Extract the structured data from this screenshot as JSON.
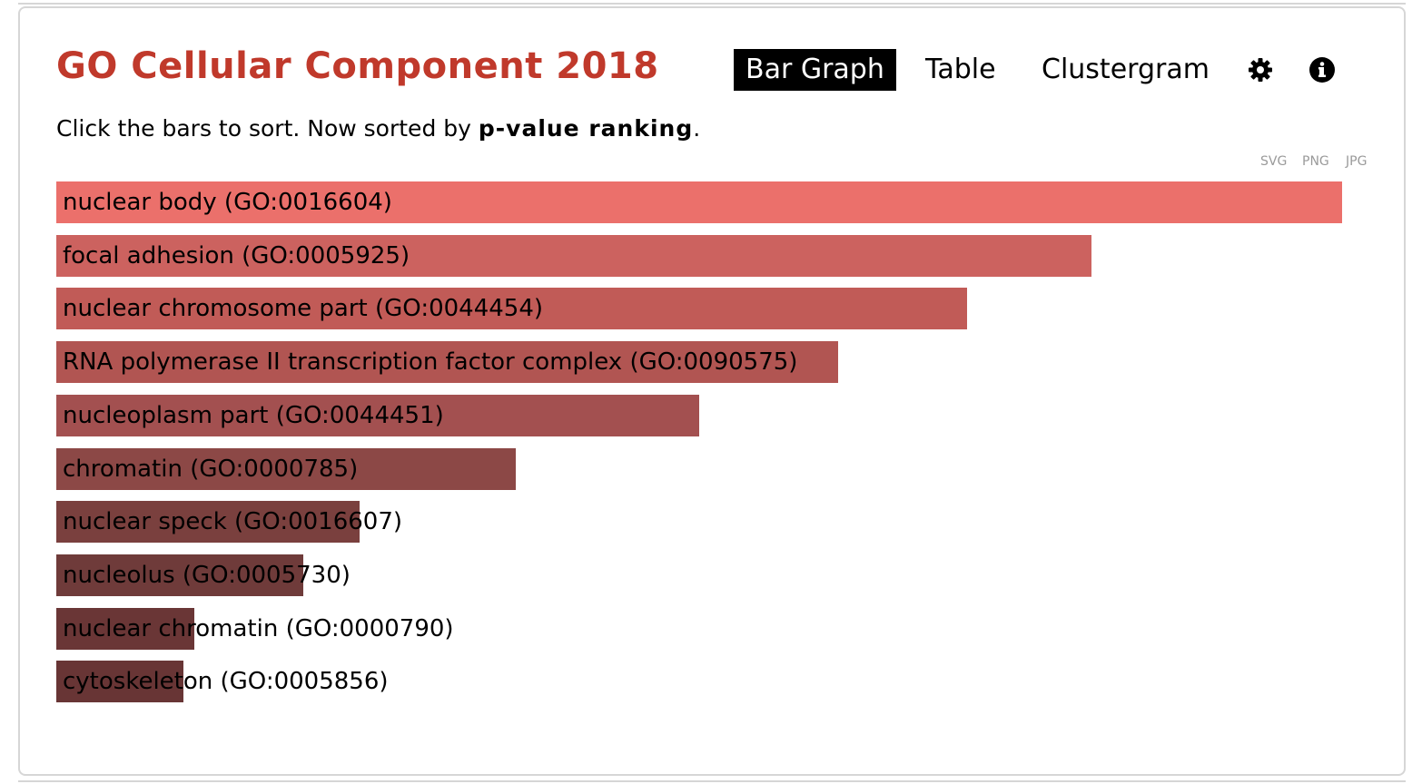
{
  "header": {
    "title": "GO Cellular Component 2018",
    "tabs": [
      {
        "label": "Bar Graph",
        "active": true
      },
      {
        "label": "Table",
        "active": false
      },
      {
        "label": "Clustergram",
        "active": false
      }
    ],
    "icons": [
      "gear-icon",
      "info-icon"
    ]
  },
  "subtitle": {
    "prefix": "Click the bars to sort. Now sorted by ",
    "sort_key": "p-value ranking",
    "suffix": "."
  },
  "export": [
    "SVG",
    "PNG",
    "JPG"
  ],
  "colors": {
    "title": "#c0392b",
    "bars": [
      "#eb706b",
      "#cc625f",
      "#c15b57",
      "#b15552",
      "#a35050",
      "#8c4846",
      "#7a403e",
      "#6f3b3a",
      "#6a3636",
      "#683535"
    ]
  },
  "chart_data": {
    "type": "bar",
    "orientation": "horizontal",
    "categories": [
      "nuclear body (GO:0016604)",
      "focal adhesion (GO:0005925)",
      "nuclear chromosome part (GO:0044454)",
      "RNA polymerase II transcription factor complex (GO:0090575)",
      "nucleoplasm part (GO:0044451)",
      "chromatin (GO:0000785)",
      "nuclear speck (GO:0016607)",
      "nucleolus (GO:0005730)",
      "nuclear chromatin (GO:0000790)",
      "cytoskeleton (GO:0005856)"
    ],
    "values": [
      1.0,
      0.805,
      0.708,
      0.608,
      0.5,
      0.357,
      0.236,
      0.192,
      0.107,
      0.099
    ],
    "title": "",
    "xlabel": "",
    "ylabel": "",
    "grid": false
  }
}
